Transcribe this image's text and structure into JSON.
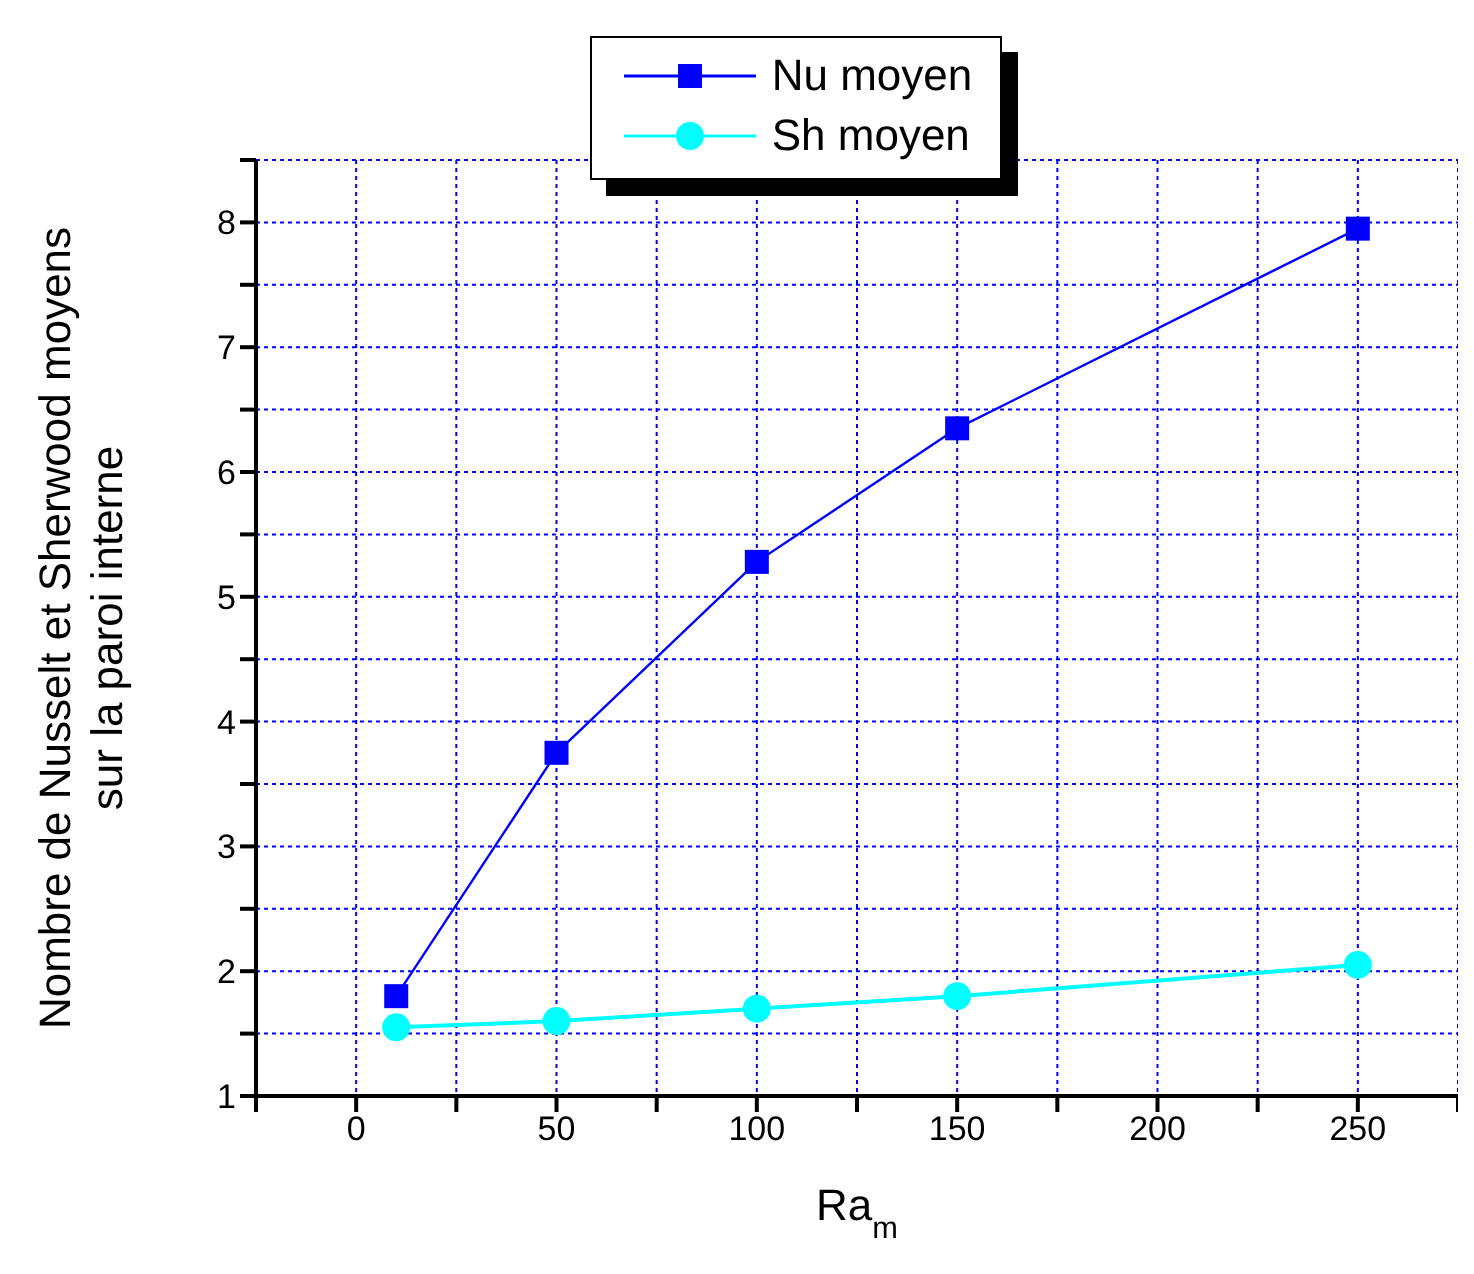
{
  "chart_data": {
    "type": "line",
    "xlabel": "Ra$_{m}$",
    "ylabel": "Nombre de Nusselt et Sherwood moyens\nsur la paroi interne",
    "x": [
      10,
      50,
      100,
      150,
      250
    ],
    "series": [
      {
        "name": "Nu moyen",
        "color": "#0000ff",
        "values": [
          1.8,
          3.75,
          5.28,
          6.35,
          7.95
        ],
        "marker": "square",
        "line_style": "solid"
      },
      {
        "name": "Sh moyen",
        "color": "#00ffff",
        "values": [
          1.55,
          1.6,
          1.7,
          1.8,
          2.05
        ],
        "marker": "circle",
        "line_style": "solid"
      }
    ],
    "xlim": [
      -25,
      275
    ],
    "xticks": [
      {
        "value": -25,
        "label": null
      },
      0,
      {
        "value": 25,
        "label": null
      },
      50,
      {
        "value": 75,
        "label": null
      },
      100,
      {
        "value": 125,
        "label": null
      },
      150,
      {
        "value": 175,
        "label": null
      },
      200,
      {
        "value": 225,
        "label": null
      },
      250,
      {
        "value": 275,
        "label": null
      }
    ],
    "ylim": [
      1,
      8.5
    ],
    "yticks": [
      1,
      {
        "value": 1.5,
        "label": null
      },
      2,
      {
        "value": 2.5,
        "label": null
      },
      3,
      {
        "value": 3.5,
        "label": null
      },
      4,
      {
        "value": 4.5,
        "label": null
      },
      5,
      {
        "value": 5.5,
        "label": null
      },
      6,
      {
        "value": 6.5,
        "label": null
      },
      7,
      {
        "value": 7.5,
        "label": null
      },
      8,
      {
        "value": 8.5,
        "label": null
      }
    ],
    "grid": true,
    "legend": "top"
  }
}
